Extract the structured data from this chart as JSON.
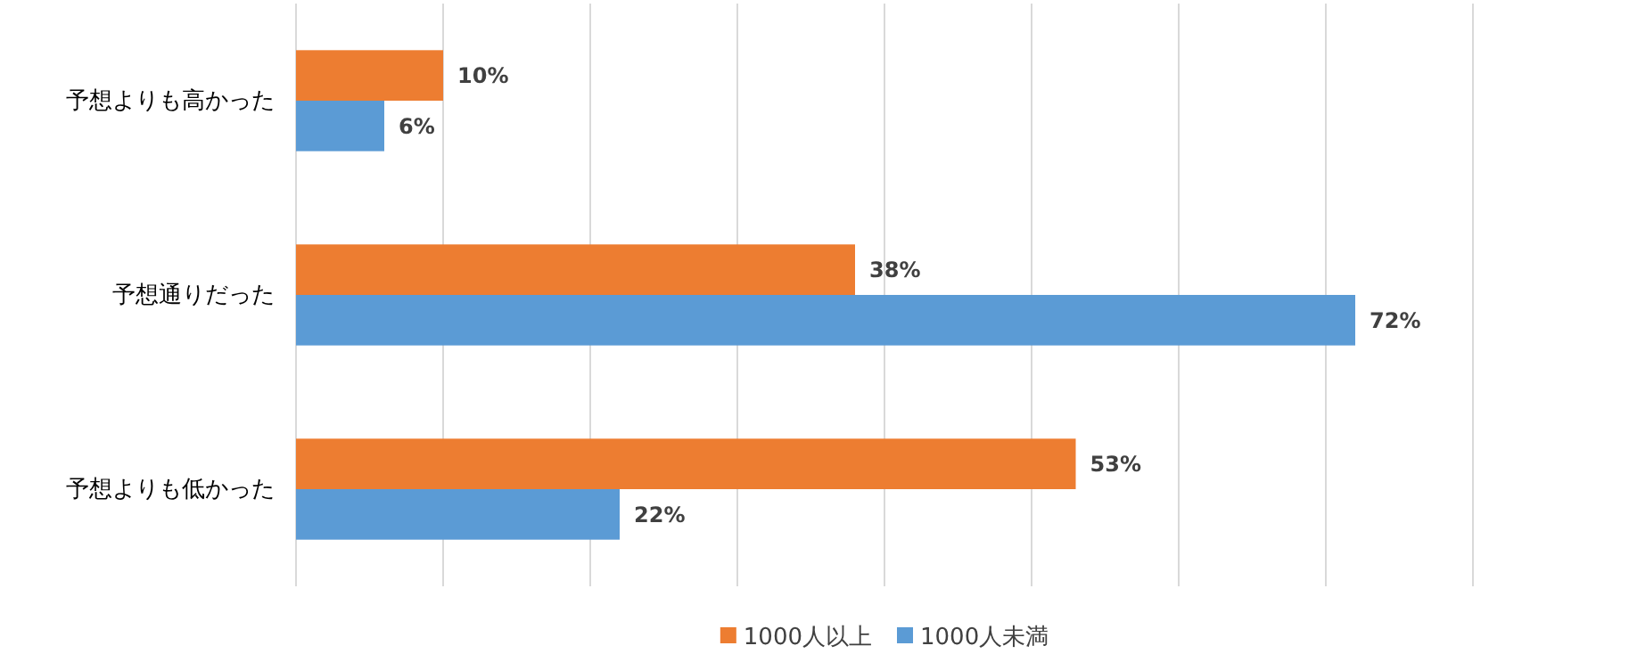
{
  "chart_data": {
    "type": "bar",
    "orientation": "horizontal",
    "categories": [
      "予想よりも高かった",
      "予想通りだった",
      "予想よりも低かった"
    ],
    "series": [
      {
        "name": "1000人以上",
        "color": "#ed7d31",
        "values": [
          10,
          38,
          53
        ],
        "value_labels": [
          "10%",
          "38%",
          "53%"
        ]
      },
      {
        "name": "1000人未満",
        "color": "#5b9bd5",
        "values": [
          6,
          72,
          22
        ],
        "value_labels": [
          "6%",
          "72%",
          "22%"
        ]
      }
    ],
    "xlim": [
      0,
      80
    ],
    "xticks": [
      {
        "value": 0,
        "label": null
      },
      {
        "value": 10,
        "label": null
      },
      {
        "value": 20,
        "label": null
      },
      {
        "value": 30,
        "label": null
      },
      {
        "value": 40,
        "label": null
      },
      {
        "value": 50,
        "label": null
      },
      {
        "value": 60,
        "label": null
      },
      {
        "value": 70,
        "label": null
      },
      {
        "value": 80,
        "label": null
      }
    ],
    "tick_labels": "y",
    "grid": "x",
    "legend": "bottom"
  }
}
